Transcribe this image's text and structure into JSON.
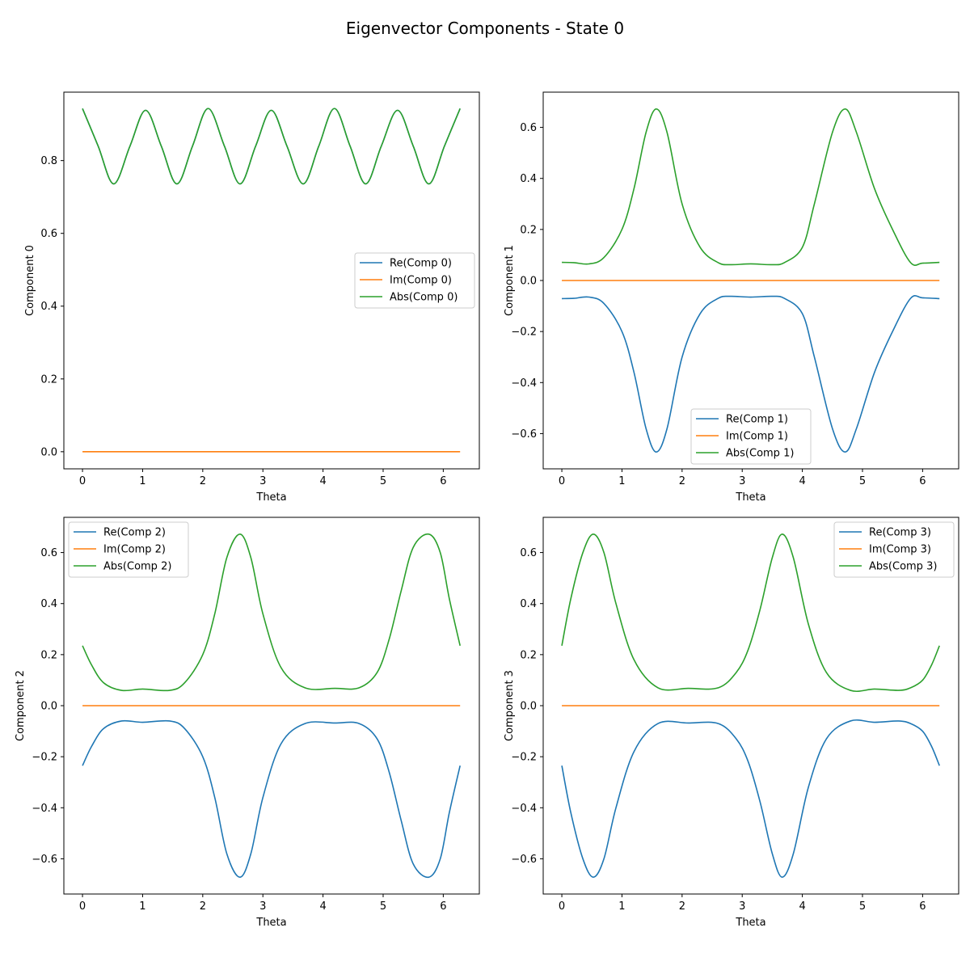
{
  "figure": {
    "title": "Eigenvector Components - State 0"
  },
  "chart_data": [
    {
      "type": "line",
      "xlabel": "Theta",
      "ylabel": "Component 0",
      "xlim": [
        -0.31,
        6.6
      ],
      "ylim": [
        -0.047,
        0.988
      ],
      "xticks": [
        "0",
        "1",
        "2",
        "3",
        "4",
        "5",
        "6"
      ],
      "yticks": [
        "0.0",
        "0.2",
        "0.4",
        "0.6",
        "0.8"
      ],
      "legend_position": "center-right",
      "x": [
        0.0,
        0.26,
        0.52,
        0.79,
        1.05,
        1.31,
        1.57,
        1.83,
        2.09,
        2.36,
        2.62,
        2.88,
        3.14,
        3.4,
        3.67,
        3.93,
        4.19,
        4.45,
        4.71,
        4.97,
        5.24,
        5.5,
        5.76,
        6.02,
        6.28
      ],
      "series": [
        {
          "name": "Re(Comp 0)",
          "color": "#1f77b4",
          "values": [
            0.943,
            0.84,
            0.736,
            0.84,
            0.938,
            0.84,
            0.736,
            0.84,
            0.943,
            0.84,
            0.736,
            0.84,
            0.938,
            0.84,
            0.736,
            0.84,
            0.943,
            0.84,
            0.736,
            0.84,
            0.938,
            0.84,
            0.736,
            0.84,
            0.943
          ]
        },
        {
          "name": "Im(Comp 0)",
          "color": "#ff7f0e",
          "values": [
            0,
            0,
            0,
            0,
            0,
            0,
            0,
            0,
            0,
            0,
            0,
            0,
            0,
            0,
            0,
            0,
            0,
            0,
            0,
            0,
            0,
            0,
            0,
            0,
            0
          ]
        },
        {
          "name": "Abs(Comp 0)",
          "color": "#2ca02c",
          "values": [
            0.943,
            0.84,
            0.736,
            0.84,
            0.938,
            0.84,
            0.736,
            0.84,
            0.943,
            0.84,
            0.736,
            0.84,
            0.938,
            0.84,
            0.736,
            0.84,
            0.943,
            0.84,
            0.736,
            0.84,
            0.938,
            0.84,
            0.736,
            0.84,
            0.943
          ]
        }
      ]
    },
    {
      "type": "line",
      "xlabel": "Theta",
      "ylabel": "Component 1",
      "xlim": [
        -0.31,
        6.6
      ],
      "ylim": [
        -0.738,
        0.738
      ],
      "xticks": [
        "0",
        "1",
        "2",
        "3",
        "4",
        "5",
        "6"
      ],
      "yticks": [
        "−0.6",
        "−0.4",
        "−0.2",
        "0.0",
        "0.2",
        "0.4",
        "0.6"
      ],
      "legend_position": "lower-center",
      "x": [
        0.0,
        0.2,
        0.45,
        0.7,
        1.0,
        1.2,
        1.4,
        1.571,
        1.75,
        2.0,
        2.3,
        2.6,
        2.8,
        3.14,
        3.5,
        3.7,
        4.0,
        4.2,
        4.5,
        4.712,
        4.9,
        5.2,
        5.5,
        5.8,
        6.0,
        6.28
      ],
      "series": [
        {
          "name": "Re(Comp 1)",
          "color": "#1f77b4",
          "values": [
            -0.071,
            -0.07,
            -0.065,
            -0.09,
            -0.2,
            -0.36,
            -0.58,
            -0.672,
            -0.58,
            -0.3,
            -0.13,
            -0.07,
            -0.062,
            -0.065,
            -0.062,
            -0.07,
            -0.13,
            -0.3,
            -0.58,
            -0.672,
            -0.58,
            -0.36,
            -0.2,
            -0.07,
            -0.068,
            -0.071
          ]
        },
        {
          "name": "Im(Comp 1)",
          "color": "#ff7f0e",
          "values": [
            0,
            0,
            0,
            0,
            0,
            0,
            0,
            0,
            0,
            0,
            0,
            0,
            0,
            0,
            0,
            0,
            0,
            0,
            0,
            0,
            0,
            0,
            0,
            0,
            0,
            0
          ]
        },
        {
          "name": "Abs(Comp 1)",
          "color": "#2ca02c",
          "values": [
            0.071,
            0.07,
            0.065,
            0.09,
            0.2,
            0.36,
            0.58,
            0.672,
            0.58,
            0.3,
            0.13,
            0.07,
            0.062,
            0.065,
            0.062,
            0.07,
            0.13,
            0.3,
            0.58,
            0.672,
            0.58,
            0.36,
            0.2,
            0.07,
            0.068,
            0.071
          ]
        }
      ]
    },
    {
      "type": "line",
      "xlabel": "Theta",
      "ylabel": "Component 2",
      "xlim": [
        -0.31,
        6.6
      ],
      "ylim": [
        -0.738,
        0.738
      ],
      "xticks": [
        "0",
        "1",
        "2",
        "3",
        "4",
        "5",
        "6"
      ],
      "yticks": [
        "−0.6",
        "−0.4",
        "−0.2",
        "0.0",
        "0.2",
        "0.4",
        "0.6"
      ],
      "legend_position": "upper-left",
      "x": [
        0.0,
        0.15,
        0.35,
        0.65,
        1.0,
        1.45,
        1.7,
        2.0,
        2.2,
        2.4,
        2.618,
        2.8,
        3.0,
        3.3,
        3.7,
        4.2,
        4.6,
        4.9,
        5.1,
        5.3,
        5.5,
        5.76,
        5.95,
        6.1,
        6.28
      ],
      "series": [
        {
          "name": "Re(Comp 2)",
          "color": "#1f77b4",
          "values": [
            -0.235,
            -0.16,
            -0.09,
            -0.06,
            -0.065,
            -0.06,
            -0.09,
            -0.2,
            -0.36,
            -0.58,
            -0.672,
            -0.58,
            -0.36,
            -0.15,
            -0.07,
            -0.068,
            -0.07,
            -0.13,
            -0.26,
            -0.45,
            -0.62,
            -0.672,
            -0.6,
            -0.42,
            -0.235
          ]
        },
        {
          "name": "Im(Comp 2)",
          "color": "#ff7f0e",
          "values": [
            0,
            0,
            0,
            0,
            0,
            0,
            0,
            0,
            0,
            0,
            0,
            0,
            0,
            0,
            0,
            0,
            0,
            0,
            0,
            0,
            0,
            0,
            0,
            0,
            0
          ]
        },
        {
          "name": "Abs(Comp 2)",
          "color": "#2ca02c",
          "values": [
            0.235,
            0.16,
            0.09,
            0.06,
            0.065,
            0.06,
            0.09,
            0.2,
            0.36,
            0.58,
            0.672,
            0.58,
            0.36,
            0.15,
            0.07,
            0.068,
            0.07,
            0.13,
            0.26,
            0.45,
            0.62,
            0.672,
            0.6,
            0.42,
            0.235
          ]
        }
      ]
    },
    {
      "type": "line",
      "xlabel": "Theta",
      "ylabel": "Component 3",
      "xlim": [
        -0.31,
        6.6
      ],
      "ylim": [
        -0.738,
        0.738
      ],
      "xticks": [
        "0",
        "1",
        "2",
        "3",
        "4",
        "5",
        "6"
      ],
      "yticks": [
        "−0.6",
        "−0.4",
        "−0.2",
        "0.0",
        "0.2",
        "0.4",
        "0.6"
      ],
      "legend_position": "upper-right",
      "x": [
        0.0,
        0.15,
        0.35,
        0.524,
        0.7,
        0.9,
        1.2,
        1.6,
        2.1,
        2.6,
        2.9,
        3.1,
        3.3,
        3.5,
        3.665,
        3.85,
        4.1,
        4.4,
        4.8,
        5.2,
        5.6,
        5.8,
        6.0,
        6.15,
        6.28
      ],
      "series": [
        {
          "name": "Re(Comp 3)",
          "color": "#1f77b4",
          "values": [
            -0.235,
            -0.42,
            -0.6,
            -0.672,
            -0.6,
            -0.4,
            -0.18,
            -0.07,
            -0.068,
            -0.07,
            -0.13,
            -0.22,
            -0.38,
            -0.58,
            -0.672,
            -0.58,
            -0.32,
            -0.13,
            -0.06,
            -0.065,
            -0.06,
            -0.07,
            -0.1,
            -0.16,
            -0.235
          ]
        },
        {
          "name": "Im(Comp 3)",
          "color": "#ff7f0e",
          "values": [
            0,
            0,
            0,
            0,
            0,
            0,
            0,
            0,
            0,
            0,
            0,
            0,
            0,
            0,
            0,
            0,
            0,
            0,
            0,
            0,
            0,
            0,
            0,
            0,
            0
          ]
        },
        {
          "name": "Abs(Comp 3)",
          "color": "#2ca02c",
          "values": [
            0.235,
            0.42,
            0.6,
            0.672,
            0.6,
            0.4,
            0.18,
            0.07,
            0.068,
            0.07,
            0.13,
            0.22,
            0.38,
            0.58,
            0.672,
            0.58,
            0.32,
            0.13,
            0.06,
            0.065,
            0.06,
            0.07,
            0.1,
            0.16,
            0.235
          ]
        }
      ]
    }
  ]
}
